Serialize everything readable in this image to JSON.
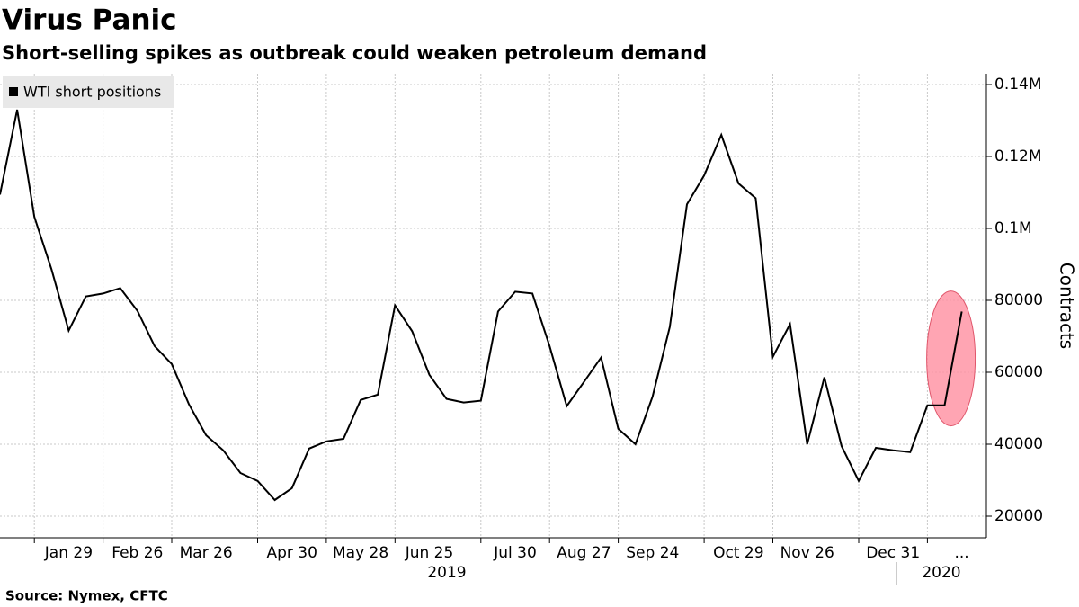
{
  "chart_data": {
    "type": "line",
    "title": "Virus Panic",
    "subtitle": "Short-selling spikes as outbreak could weaken petroleum demand",
    "source": "Source: Nymex, CFTC",
    "y_label": "Contracts",
    "categories": [
      null,
      null,
      null,
      null,
      "Jan 29",
      null,
      null,
      null,
      "Feb 26",
      null,
      null,
      null,
      "Mar 26",
      null,
      null,
      null,
      null,
      "Apr 30",
      null,
      null,
      null,
      "May 28",
      null,
      null,
      null,
      "Jun 25",
      null,
      null,
      null,
      null,
      "Jul 30",
      null,
      null,
      null,
      "Aug 27",
      null,
      null,
      null,
      "Sep 24",
      null,
      null,
      null,
      null,
      "Oct 29",
      null,
      null,
      null,
      "Nov 26",
      null,
      null,
      null,
      null,
      "Dec 31",
      null,
      null,
      null,
      "..."
    ],
    "years": [
      "2019",
      "2020"
    ],
    "series": [
      {
        "name": "WTI short positions",
        "color": "#000000",
        "values": [
          109400,
          133000,
          103200,
          88600,
          71600,
          81100,
          81900,
          83400,
          77100,
          67300,
          62300,
          51100,
          42500,
          38300,
          32000,
          29800,
          24500,
          27800,
          38800,
          40800,
          41500,
          52300,
          53800,
          78600,
          71400,
          59300,
          52600,
          51600,
          52100,
          76900,
          82400,
          81900,
          67300,
          50600,
          57300,
          64100,
          44300,
          40000,
          53300,
          72600,
          106700,
          114700,
          126000,
          112500,
          108400,
          64300,
          73400,
          40000,
          58600,
          39500,
          29800,
          39000,
          38300,
          37800,
          50800,
          50800,
          76900
        ]
      }
    ],
    "ylim": [
      14000,
      143000
    ],
    "yticks": [
      20000,
      40000,
      60000,
      80000,
      {
        "value": 100000,
        "label": "0.1M"
      },
      {
        "value": 120000,
        "label": "0.12M"
      },
      {
        "value": 140000,
        "label": "0.14M"
      }
    ],
    "grid": true
  }
}
